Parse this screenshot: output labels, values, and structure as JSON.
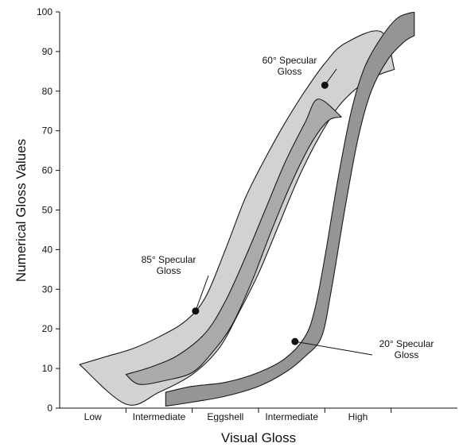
{
  "chart_data": {
    "type": "area",
    "xlabel": "Visual Gloss",
    "ylabel": "Numerical Gloss Values",
    "ylim": [
      0,
      100
    ],
    "yticks": [
      0,
      10,
      20,
      30,
      40,
      50,
      60,
      70,
      80,
      90,
      100
    ],
    "xlim": [
      0,
      6
    ],
    "categories": [
      "Low",
      "Intermediate",
      "Eggshell",
      "Intermediate",
      "High"
    ],
    "category_positions": [
      0.5,
      1.5,
      2.5,
      3.5,
      4.5
    ],
    "x_tick_positions": [
      1,
      2,
      3,
      4,
      5
    ],
    "grid": false,
    "series": [
      {
        "name": "85° Specular Gloss",
        "fill": "#d2d2d2",
        "upper": [
          [
            0.3,
            11
          ],
          [
            0.7,
            13
          ],
          [
            1.1,
            15
          ],
          [
            1.5,
            18
          ],
          [
            1.9,
            22
          ],
          [
            2.2,
            28
          ],
          [
            2.5,
            40
          ],
          [
            2.8,
            53
          ],
          [
            3.1,
            63
          ],
          [
            3.4,
            72
          ],
          [
            3.7,
            80
          ],
          [
            4.0,
            87
          ],
          [
            4.3,
            92
          ],
          [
            4.85,
            95
          ],
          [
            5.05,
            85.5
          ]
        ],
        "lower": [
          [
            0.3,
            11
          ],
          [
            1.0,
            1
          ],
          [
            1.5,
            4
          ],
          [
            2.0,
            8.5
          ],
          [
            2.4,
            15
          ],
          [
            2.7,
            24
          ],
          [
            3.0,
            34
          ],
          [
            3.3,
            46
          ],
          [
            3.6,
            58
          ],
          [
            3.9,
            68
          ],
          [
            4.2,
            76
          ],
          [
            4.5,
            81
          ],
          [
            4.8,
            84
          ],
          [
            5.05,
            85.5
          ]
        ]
      },
      {
        "name": "60° Specular Gloss",
        "fill": "#aaaaaa",
        "upper": [
          [
            1.0,
            8.5
          ],
          [
            1.4,
            10.5
          ],
          [
            1.8,
            13.5
          ],
          [
            2.2,
            19
          ],
          [
            2.5,
            27
          ],
          [
            2.8,
            38
          ],
          [
            3.1,
            50
          ],
          [
            3.4,
            62
          ],
          [
            3.7,
            72
          ],
          [
            3.9,
            78
          ],
          [
            4.25,
            73.5
          ]
        ],
        "lower": [
          [
            1.0,
            8.5
          ],
          [
            1.2,
            6
          ],
          [
            1.6,
            7
          ],
          [
            2.0,
            9
          ],
          [
            2.3,
            14
          ],
          [
            2.6,
            21
          ],
          [
            2.9,
            32
          ],
          [
            3.2,
            45
          ],
          [
            3.5,
            57
          ],
          [
            3.8,
            67
          ],
          [
            4.05,
            72.5
          ],
          [
            4.25,
            73.5
          ]
        ]
      },
      {
        "name": "20° Specular Gloss",
        "fill": "#959595",
        "upper": [
          [
            1.6,
            4
          ],
          [
            2.0,
            5.5
          ],
          [
            2.5,
            6.5
          ],
          [
            3.0,
            9
          ],
          [
            3.4,
            12.5
          ],
          [
            3.7,
            18
          ],
          [
            3.85,
            25
          ],
          [
            4.0,
            38
          ],
          [
            4.2,
            58
          ],
          [
            4.4,
            75
          ],
          [
            4.6,
            86
          ],
          [
            4.85,
            93.5
          ],
          [
            5.1,
            98.5
          ],
          [
            5.35,
            100
          ]
        ],
        "lower": [
          [
            1.6,
            0.5
          ],
          [
            2.0,
            1.5
          ],
          [
            2.5,
            3
          ],
          [
            3.0,
            5.5
          ],
          [
            3.4,
            9
          ],
          [
            3.7,
            13
          ],
          [
            3.95,
            18
          ],
          [
            4.1,
            30
          ],
          [
            4.3,
            50
          ],
          [
            4.5,
            68
          ],
          [
            4.7,
            80
          ],
          [
            4.95,
            88
          ],
          [
            5.2,
            92.5
          ],
          [
            5.35,
            94
          ]
        ]
      }
    ],
    "annotations": [
      {
        "text": [
          "60° Specular",
          "Gloss"
        ],
        "point": [
          4.0,
          81.5
        ]
      },
      {
        "text": [
          "85° Specular",
          "Gloss"
        ],
        "point": [
          2.05,
          24.5
        ]
      },
      {
        "text": [
          "20° Specular",
          "Gloss"
        ],
        "point": [
          3.55,
          16.8
        ]
      }
    ]
  }
}
